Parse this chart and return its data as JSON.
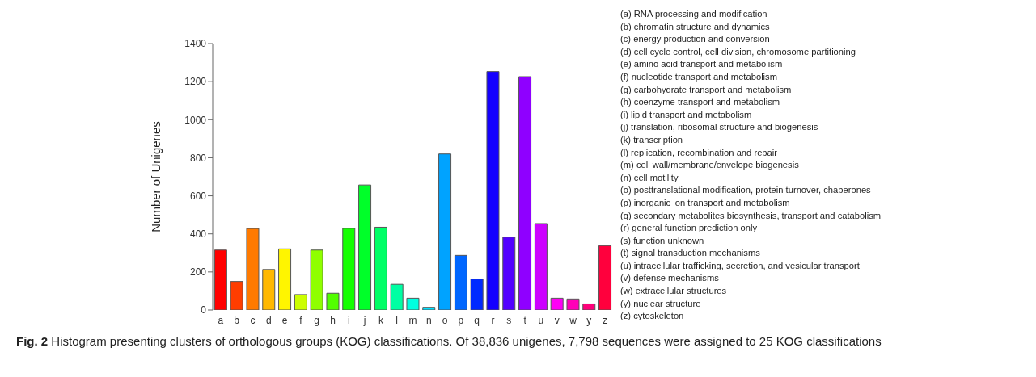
{
  "chart_data": {
    "type": "bar",
    "ylabel": "Number of Unigenes",
    "categories": [
      "a",
      "b",
      "c",
      "d",
      "e",
      "f",
      "g",
      "h",
      "i",
      "j",
      "k",
      "l",
      "m",
      "n",
      "o",
      "p",
      "q",
      "r",
      "s",
      "t",
      "u",
      "v",
      "w",
      "y",
      "z"
    ],
    "values": [
      315,
      150,
      428,
      213,
      321,
      81,
      315,
      88,
      429,
      657,
      435,
      135,
      62,
      14,
      820,
      287,
      163,
      1253,
      383,
      1226,
      454,
      62,
      58,
      32,
      338
    ],
    "colors": [
      "#ff0000",
      "#ff3d00",
      "#ff7a00",
      "#ffb800",
      "#fff500",
      "#ccff00",
      "#8fff00",
      "#52ff00",
      "#14ff00",
      "#00ff29",
      "#00ff66",
      "#00ffa3",
      "#00ffe0",
      "#00e0ff",
      "#00a3ff",
      "#0066ff",
      "#0029ff",
      "#1400ff",
      "#5200ff",
      "#8f00ff",
      "#cc00ff",
      "#ff00f5",
      "#ff00b8",
      "#ff007a",
      "#ff003d"
    ],
    "ylim": [
      0,
      1400
    ],
    "yticks": [
      0,
      200,
      400,
      600,
      800,
      1000,
      1200,
      1400
    ],
    "grid": false,
    "legend": false,
    "annotations": [
      "(a) RNA processing and modification",
      "(b) chromatin structure and dynamics",
      "(c) energy production and conversion",
      "(d) cell cycle control, cell division, chromosome partitioning",
      "(e) amino acid transport and metabolism",
      "(f) nucleotide transport and metabolism",
      "(g) carbohydrate transport and metabolism",
      "(h) coenzyme transport and metabolism",
      "(i) lipid transport and metabolism",
      "(j) translation, ribosomal structure and biogenesis",
      "(k) transcription",
      "(l) replication, recombination and repair",
      "(m) cell wall/membrane/envelope biogenesis",
      "(n) cell motility",
      "(o) posttranslational modification, protein turnover, chaperones",
      "(p) inorganic ion transport and metabolism",
      "(q) secondary metabolites biosynthesis, transport and catabolism",
      "(r) general function prediction only",
      "(s) function unknown",
      "(t) signal transduction mechanisms",
      "(u) intracellular trafficking, secretion, and vesicular transport",
      "(v) defense mechanisms",
      "(w) extracellular structures",
      "(y) nuclear structure",
      "(z) cytoskeleton",
      "Fig. 2 Histogram presenting clusters of orthologous groups (KOG) classifications. Of 38,836 unigenes, 7,798 sequences were assigned to 25 KOG classifications"
    ]
  }
}
